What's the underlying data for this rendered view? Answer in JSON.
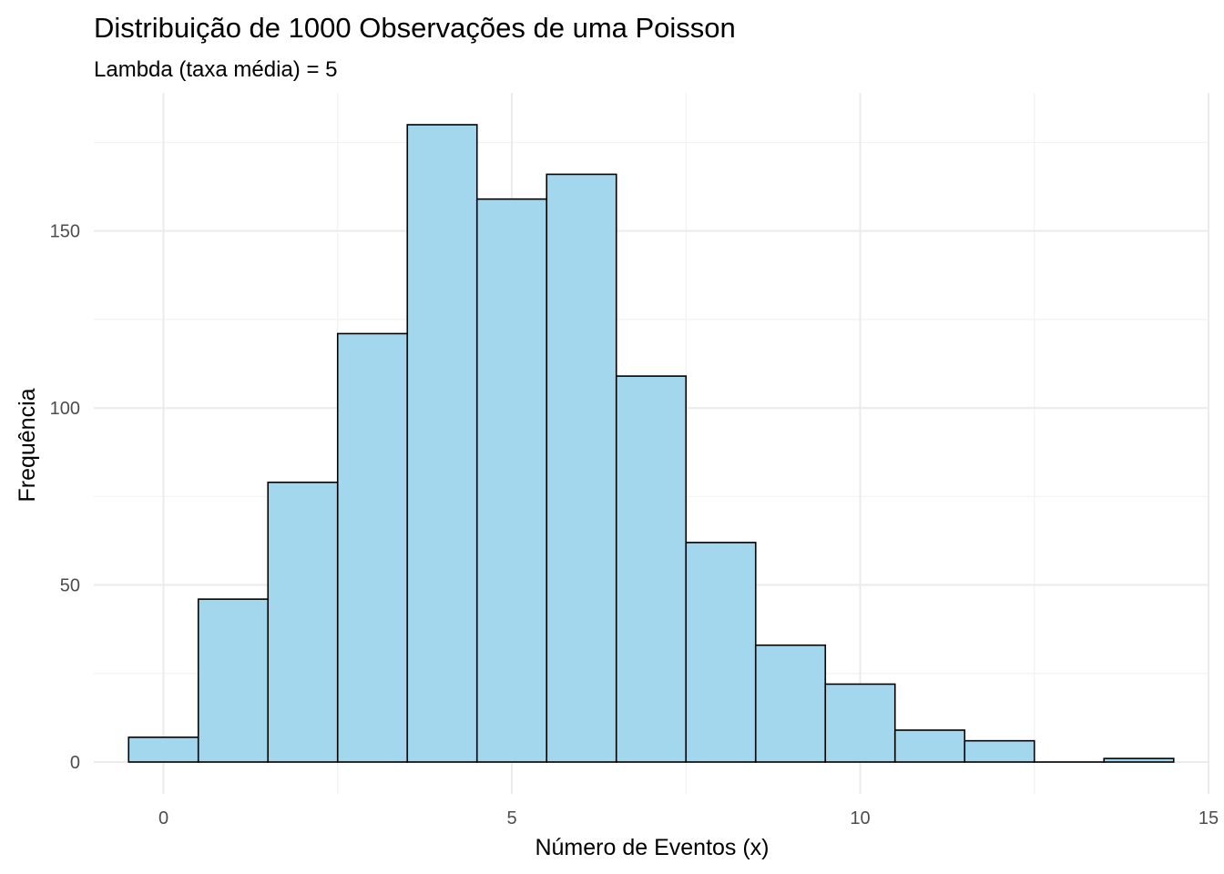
{
  "chart_data": {
    "type": "bar",
    "title": "Distribuição de 1000 Observações de uma Poisson",
    "subtitle": "Lambda (taxa média) = 5",
    "xlabel": "Número de Eventos (x)",
    "ylabel": "Frequência",
    "x": [
      0,
      1,
      2,
      3,
      4,
      5,
      6,
      7,
      8,
      9,
      10,
      11,
      12,
      13,
      14
    ],
    "values": [
      7,
      46,
      79,
      121,
      180,
      159,
      166,
      109,
      62,
      33,
      22,
      9,
      6,
      0,
      1
    ],
    "bin_width": 1,
    "xlim": [
      -1,
      15
    ],
    "ylim": [
      -9,
      189
    ],
    "x_ticks": [
      0,
      5,
      10,
      15
    ],
    "y_ticks": [
      0,
      50,
      100,
      150
    ],
    "grid": true,
    "legend": "none",
    "colors": {
      "bar_fill": "#a2d7ee",
      "bar_outline": "#000000",
      "grid_major": "#ebebeb",
      "grid_minor": "#f2f2f2",
      "background": "#ffffff"
    }
  }
}
